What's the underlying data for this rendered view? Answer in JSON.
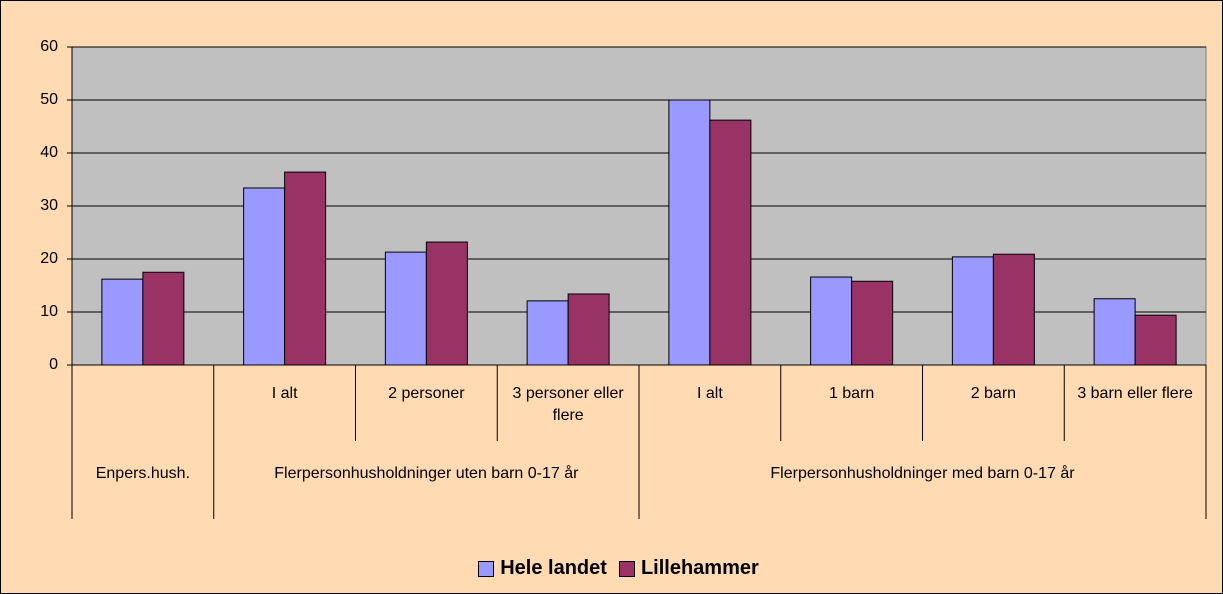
{
  "chart_data": {
    "type": "bar",
    "groups": [
      {
        "name": "Enpers.hush.",
        "categories": [
          null
        ]
      },
      {
        "name": "Flerpersonhusholdninger uten barn 0-17 år",
        "categories": [
          "I alt",
          "2 personer",
          "3 personer eller flere"
        ]
      },
      {
        "name": "Flerpersonhusholdninger med barn 0-17 år",
        "categories": [
          "I alt",
          "1 barn",
          "2 barn",
          "3 barn eller flere"
        ]
      }
    ],
    "series": [
      {
        "name": "Hele landet",
        "color": "#9999FF",
        "values": [
          16.2,
          33.4,
          21.3,
          12.1,
          50.0,
          16.6,
          20.4,
          12.5
        ]
      },
      {
        "name": "Lillehammer",
        "color": "#993366",
        "values": [
          17.5,
          36.4,
          23.2,
          13.4,
          46.2,
          15.8,
          20.9,
          9.4
        ]
      }
    ],
    "ylim": [
      0,
      60
    ],
    "yticks": [
      0,
      10,
      20,
      30,
      40,
      50,
      60
    ],
    "grid": true,
    "legend": "bottom"
  }
}
